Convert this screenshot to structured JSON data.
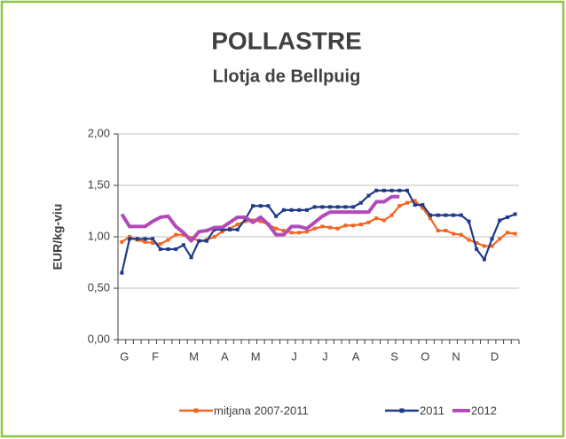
{
  "chart_data": {
    "type": "line",
    "title": "POLLASTRE",
    "subtitle": "Llotja de Bellpuig",
    "y_label": "EUR/kg-viu",
    "categories": [
      "G",
      null,
      null,
      null,
      "F",
      null,
      null,
      null,
      null,
      "M",
      null,
      null,
      null,
      "A",
      null,
      null,
      null,
      "M",
      null,
      null,
      null,
      null,
      "J",
      null,
      null,
      null,
      "J",
      null,
      null,
      null,
      "A",
      null,
      null,
      null,
      null,
      "S",
      null,
      null,
      null,
      "O",
      null,
      null,
      null,
      "N",
      null,
      null,
      null,
      null,
      "D",
      null,
      null,
      null
    ],
    "ylim": [
      0,
      2
    ],
    "yticks": [
      {
        "value": 0,
        "label": "0,00"
      },
      {
        "value": 0.5,
        "label": "0,50"
      },
      {
        "value": 1,
        "label": "1,00"
      },
      {
        "value": 1.5,
        "label": "1,50"
      },
      {
        "value": 2,
        "label": "2,00"
      }
    ],
    "grid": true,
    "legend": "bottom",
    "series": [
      {
        "name": "mitjana 2007-2011",
        "color": "#f26522",
        "marker": true,
        "values": [
          0.95,
          1.0,
          0.97,
          0.95,
          0.94,
          0.93,
          0.97,
          1.02,
          1.02,
          0.99,
          0.96,
          0.97,
          1.0,
          1.05,
          1.08,
          1.12,
          1.15,
          1.16,
          1.15,
          1.12,
          1.08,
          1.06,
          1.04,
          1.04,
          1.05,
          1.08,
          1.1,
          1.09,
          1.08,
          1.11,
          1.11,
          1.12,
          1.14,
          1.18,
          1.16,
          1.21,
          1.3,
          1.33,
          1.35,
          1.28,
          1.18,
          1.06,
          1.06,
          1.03,
          1.02,
          0.97,
          0.94,
          0.91,
          0.91,
          0.98,
          1.04,
          1.03
        ]
      },
      {
        "name": "2011",
        "color": "#1f3a8a",
        "marker": true,
        "values": [
          0.65,
          0.98,
          0.98,
          0.98,
          0.98,
          0.88,
          0.88,
          0.88,
          0.92,
          0.8,
          0.96,
          0.96,
          1.07,
          1.07,
          1.07,
          1.07,
          1.17,
          1.3,
          1.3,
          1.3,
          1.2,
          1.26,
          1.26,
          1.26,
          1.26,
          1.29,
          1.29,
          1.29,
          1.29,
          1.29,
          1.29,
          1.33,
          1.4,
          1.45,
          1.45,
          1.45,
          1.45,
          1.45,
          1.31,
          1.31,
          1.21,
          1.21,
          1.21,
          1.21,
          1.21,
          1.15,
          0.88,
          0.78,
          0.98,
          1.16,
          1.19,
          1.22
        ]
      },
      {
        "name": "2012",
        "color": "#b24ab8",
        "marker": false,
        "values": [
          1.22,
          1.1,
          1.1,
          1.1,
          1.15,
          1.19,
          1.2,
          1.1,
          1.04,
          0.96,
          1.05,
          1.06,
          1.09,
          1.09,
          1.14,
          1.19,
          1.19,
          1.14,
          1.19,
          1.12,
          1.02,
          1.02,
          1.1,
          1.1,
          1.08,
          1.14,
          1.2,
          1.24,
          1.24,
          1.24,
          1.24,
          1.24,
          1.24,
          1.34,
          1.34,
          1.39,
          1.39,
          null,
          null,
          null,
          null,
          null,
          null,
          null,
          null,
          null,
          null,
          null,
          null,
          null,
          null,
          null
        ]
      }
    ]
  }
}
